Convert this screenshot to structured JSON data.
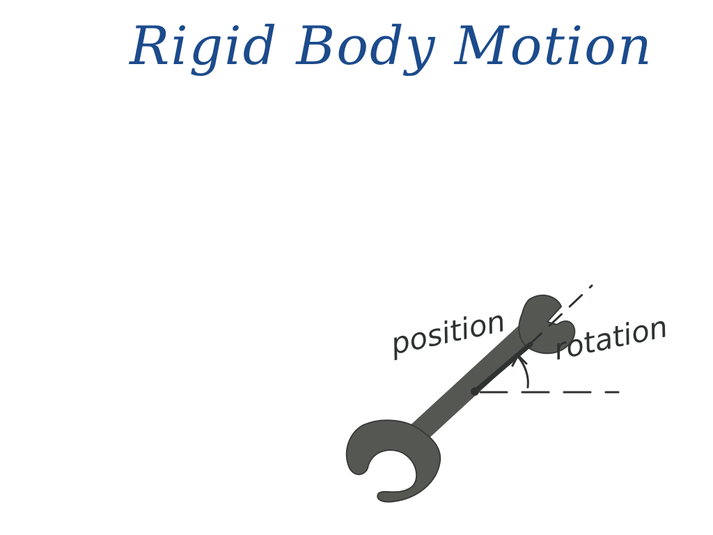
{
  "title": "Rigid Body Motion",
  "labels": {
    "position": "position",
    "rotation": "rotation"
  },
  "colors": {
    "title": "#1c4b8c",
    "ink": "#2e3231",
    "wrench_fill": "#555752",
    "wrench_outline": "#3a3c39"
  }
}
